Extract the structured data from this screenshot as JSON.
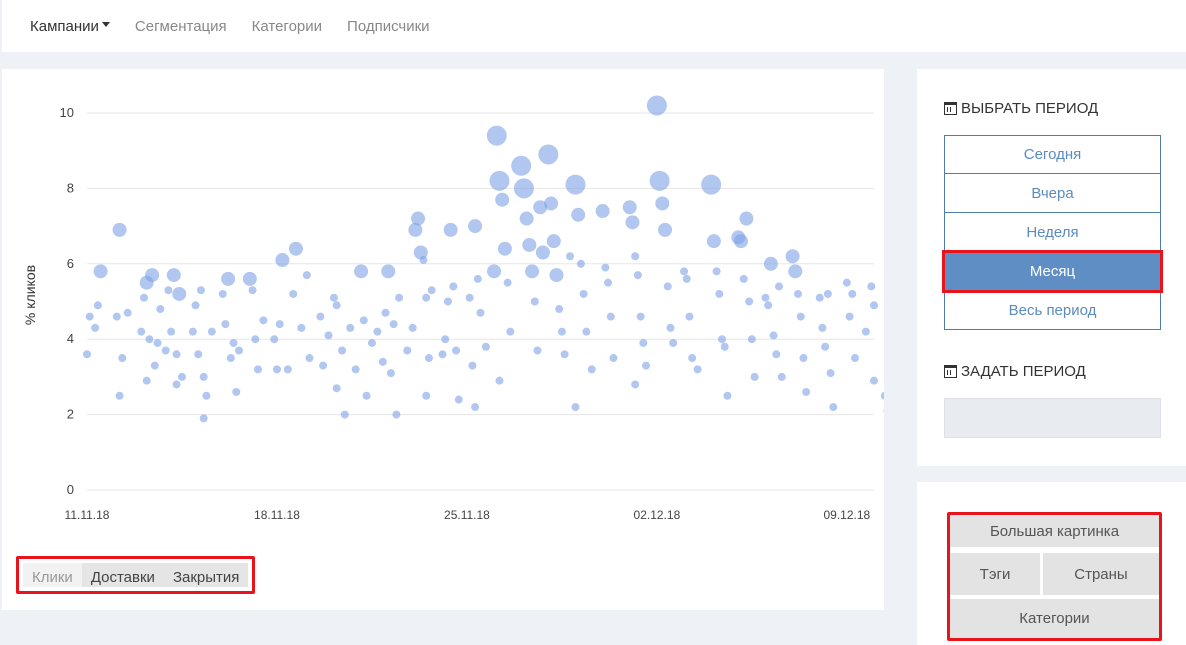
{
  "nav": {
    "items": [
      {
        "label": "Кампании",
        "active": true,
        "dropdown": true
      },
      {
        "label": "Сегментация"
      },
      {
        "label": "Категории"
      },
      {
        "label": "Подписчики"
      }
    ]
  },
  "colors": {
    "bubble": "#7da2e6",
    "accent_red": "#e8131b",
    "active_period": "#5f8ec4",
    "period_text": "#5b8bc0"
  },
  "chart_data": {
    "type": "scatter",
    "ylabel": "% кликов",
    "xlabel": "",
    "ylim": [
      0,
      10
    ],
    "y_ticks": [
      "0",
      "2",
      "4",
      "6",
      "8",
      "10"
    ],
    "x_range": [
      "2018-11-11",
      "2018-12-10"
    ],
    "x_ticks": [
      "11.11.18",
      "18.11.18",
      "25.11.18",
      "02.12.18",
      "09.12.18"
    ],
    "grid": true,
    "marker_size_varies": true,
    "series": [
      {
        "points": [
          {
            "d": 0.0,
            "y": 3.6,
            "s": 1
          },
          {
            "d": 0.1,
            "y": 4.6,
            "s": 1
          },
          {
            "d": 0.3,
            "y": 4.3,
            "s": 1
          },
          {
            "d": 0.4,
            "y": 4.9,
            "s": 1
          },
          {
            "d": 0.5,
            "y": 5.8,
            "s": 2
          },
          {
            "d": 1.1,
            "y": 4.6,
            "s": 1
          },
          {
            "d": 1.2,
            "y": 6.9,
            "s": 2
          },
          {
            "d": 1.3,
            "y": 3.5,
            "s": 1
          },
          {
            "d": 1.5,
            "y": 4.7,
            "s": 1
          },
          {
            "d": 1.2,
            "y": 2.5,
            "s": 1
          },
          {
            "d": 2.0,
            "y": 4.2,
            "s": 1
          },
          {
            "d": 2.1,
            "y": 5.1,
            "s": 1
          },
          {
            "d": 2.2,
            "y": 5.5,
            "s": 2
          },
          {
            "d": 2.3,
            "y": 4.0,
            "s": 1
          },
          {
            "d": 2.4,
            "y": 5.7,
            "s": 2
          },
          {
            "d": 2.5,
            "y": 3.3,
            "s": 1
          },
          {
            "d": 2.6,
            "y": 3.9,
            "s": 1
          },
          {
            "d": 2.2,
            "y": 2.9,
            "s": 1
          },
          {
            "d": 2.7,
            "y": 4.8,
            "s": 1
          },
          {
            "d": 2.9,
            "y": 3.7,
            "s": 1
          },
          {
            "d": 3.0,
            "y": 5.3,
            "s": 1
          },
          {
            "d": 3.1,
            "y": 4.2,
            "s": 1
          },
          {
            "d": 3.2,
            "y": 5.7,
            "s": 2
          },
          {
            "d": 3.3,
            "y": 3.6,
            "s": 1
          },
          {
            "d": 3.4,
            "y": 5.2,
            "s": 2
          },
          {
            "d": 3.5,
            "y": 3.0,
            "s": 1
          },
          {
            "d": 3.3,
            "y": 2.8,
            "s": 1
          },
          {
            "d": 3.9,
            "y": 4.2,
            "s": 1
          },
          {
            "d": 4.0,
            "y": 4.9,
            "s": 1
          },
          {
            "d": 4.1,
            "y": 3.6,
            "s": 1
          },
          {
            "d": 4.2,
            "y": 5.3,
            "s": 1
          },
          {
            "d": 4.3,
            "y": 3.0,
            "s": 1
          },
          {
            "d": 4.4,
            "y": 2.5,
            "s": 1
          },
          {
            "d": 4.3,
            "y": 1.9,
            "s": 1
          },
          {
            "d": 4.6,
            "y": 4.2,
            "s": 1
          },
          {
            "d": 5.0,
            "y": 5.2,
            "s": 1
          },
          {
            "d": 5.1,
            "y": 4.4,
            "s": 1
          },
          {
            "d": 5.2,
            "y": 5.6,
            "s": 2
          },
          {
            "d": 5.3,
            "y": 3.5,
            "s": 1
          },
          {
            "d": 5.4,
            "y": 3.9,
            "s": 1
          },
          {
            "d": 5.5,
            "y": 2.6,
            "s": 1
          },
          {
            "d": 5.6,
            "y": 3.7,
            "s": 1
          },
          {
            "d": 6.0,
            "y": 5.6,
            "s": 2
          },
          {
            "d": 6.1,
            "y": 5.3,
            "s": 1
          },
          {
            "d": 6.2,
            "y": 4.0,
            "s": 1
          },
          {
            "d": 6.3,
            "y": 3.2,
            "s": 1
          },
          {
            "d": 6.5,
            "y": 4.5,
            "s": 1
          },
          {
            "d": 6.9,
            "y": 4.0,
            "s": 1
          },
          {
            "d": 7.0,
            "y": 3.2,
            "s": 1
          },
          {
            "d": 7.1,
            "y": 4.4,
            "s": 1
          },
          {
            "d": 7.2,
            "y": 6.1,
            "s": 2
          },
          {
            "d": 7.4,
            "y": 3.2,
            "s": 1
          },
          {
            "d": 7.6,
            "y": 5.2,
            "s": 1
          },
          {
            "d": 7.7,
            "y": 6.4,
            "s": 2
          },
          {
            "d": 7.9,
            "y": 4.3,
            "s": 1
          },
          {
            "d": 8.1,
            "y": 5.7,
            "s": 1
          },
          {
            "d": 8.2,
            "y": 3.5,
            "s": 1
          },
          {
            "d": 8.6,
            "y": 4.6,
            "s": 1
          },
          {
            "d": 8.7,
            "y": 3.3,
            "s": 1
          },
          {
            "d": 8.9,
            "y": 4.1,
            "s": 1
          },
          {
            "d": 9.1,
            "y": 5.1,
            "s": 1
          },
          {
            "d": 9.2,
            "y": 4.9,
            "s": 1
          },
          {
            "d": 9.2,
            "y": 2.7,
            "s": 1
          },
          {
            "d": 9.4,
            "y": 3.7,
            "s": 1
          },
          {
            "d": 9.5,
            "y": 2.0,
            "s": 1
          },
          {
            "d": 9.7,
            "y": 4.3,
            "s": 1
          },
          {
            "d": 9.9,
            "y": 3.2,
            "s": 1
          },
          {
            "d": 10.1,
            "y": 5.8,
            "s": 2
          },
          {
            "d": 10.2,
            "y": 4.5,
            "s": 1
          },
          {
            "d": 10.3,
            "y": 2.5,
            "s": 1
          },
          {
            "d": 10.5,
            "y": 3.9,
            "s": 1
          },
          {
            "d": 10.7,
            "y": 4.2,
            "s": 1
          },
          {
            "d": 10.9,
            "y": 3.4,
            "s": 1
          },
          {
            "d": 11.0,
            "y": 4.7,
            "s": 1
          },
          {
            "d": 11.1,
            "y": 5.8,
            "s": 2
          },
          {
            "d": 11.2,
            "y": 3.1,
            "s": 1
          },
          {
            "d": 11.3,
            "y": 4.4,
            "s": 1
          },
          {
            "d": 11.4,
            "y": 2.0,
            "s": 1
          },
          {
            "d": 11.5,
            "y": 5.1,
            "s": 1
          },
          {
            "d": 11.8,
            "y": 3.7,
            "s": 1
          },
          {
            "d": 12.0,
            "y": 4.3,
            "s": 1
          },
          {
            "d": 12.1,
            "y": 6.9,
            "s": 2
          },
          {
            "d": 12.2,
            "y": 7.2,
            "s": 2
          },
          {
            "d": 12.3,
            "y": 6.3,
            "s": 2
          },
          {
            "d": 12.4,
            "y": 6.1,
            "s": 1
          },
          {
            "d": 12.5,
            "y": 5.1,
            "s": 1
          },
          {
            "d": 12.6,
            "y": 3.5,
            "s": 1
          },
          {
            "d": 12.7,
            "y": 5.3,
            "s": 1
          },
          {
            "d": 12.5,
            "y": 2.5,
            "s": 1
          },
          {
            "d": 13.1,
            "y": 3.6,
            "s": 1
          },
          {
            "d": 13.2,
            "y": 4.0,
            "s": 1
          },
          {
            "d": 13.3,
            "y": 5.0,
            "s": 1
          },
          {
            "d": 13.4,
            "y": 6.9,
            "s": 2
          },
          {
            "d": 13.5,
            "y": 5.4,
            "s": 1
          },
          {
            "d": 13.6,
            "y": 3.7,
            "s": 1
          },
          {
            "d": 13.7,
            "y": 2.4,
            "s": 1
          },
          {
            "d": 14.1,
            "y": 5.1,
            "s": 1
          },
          {
            "d": 14.2,
            "y": 3.3,
            "s": 1
          },
          {
            "d": 14.3,
            "y": 7.0,
            "s": 2
          },
          {
            "d": 14.4,
            "y": 5.6,
            "s": 1
          },
          {
            "d": 14.5,
            "y": 4.7,
            "s": 1
          },
          {
            "d": 14.3,
            "y": 2.2,
            "s": 1
          },
          {
            "d": 14.7,
            "y": 3.8,
            "s": 1
          },
          {
            "d": 15.0,
            "y": 5.8,
            "s": 2
          },
          {
            "d": 15.1,
            "y": 9.4,
            "s": 3
          },
          {
            "d": 15.2,
            "y": 8.2,
            "s": 3
          },
          {
            "d": 15.3,
            "y": 7.7,
            "s": 2
          },
          {
            "d": 15.4,
            "y": 6.4,
            "s": 2
          },
          {
            "d": 15.5,
            "y": 5.5,
            "s": 1
          },
          {
            "d": 15.6,
            "y": 4.2,
            "s": 1
          },
          {
            "d": 15.2,
            "y": 2.9,
            "s": 1
          },
          {
            "d": 16.0,
            "y": 8.6,
            "s": 3
          },
          {
            "d": 16.1,
            "y": 8.0,
            "s": 3
          },
          {
            "d": 16.2,
            "y": 7.2,
            "s": 2
          },
          {
            "d": 16.3,
            "y": 6.5,
            "s": 2
          },
          {
            "d": 16.4,
            "y": 5.8,
            "s": 2
          },
          {
            "d": 16.5,
            "y": 5.0,
            "s": 1
          },
          {
            "d": 16.6,
            "y": 3.7,
            "s": 1
          },
          {
            "d": 16.7,
            "y": 7.5,
            "s": 2
          },
          {
            "d": 16.8,
            "y": 6.3,
            "s": 2
          },
          {
            "d": 17.0,
            "y": 8.9,
            "s": 3
          },
          {
            "d": 17.1,
            "y": 7.6,
            "s": 2
          },
          {
            "d": 17.2,
            "y": 6.6,
            "s": 2
          },
          {
            "d": 17.3,
            "y": 5.7,
            "s": 2
          },
          {
            "d": 17.4,
            "y": 4.8,
            "s": 1
          },
          {
            "d": 17.5,
            "y": 4.2,
            "s": 1
          },
          {
            "d": 17.6,
            "y": 3.6,
            "s": 1
          },
          {
            "d": 17.8,
            "y": 6.2,
            "s": 1
          },
          {
            "d": 18.0,
            "y": 8.1,
            "s": 3
          },
          {
            "d": 18.1,
            "y": 7.3,
            "s": 2
          },
          {
            "d": 18.2,
            "y": 6.0,
            "s": 1
          },
          {
            "d": 18.3,
            "y": 5.2,
            "s": 1
          },
          {
            "d": 18.4,
            "y": 4.2,
            "s": 1
          },
          {
            "d": 18.0,
            "y": 2.2,
            "s": 1
          },
          {
            "d": 18.6,
            "y": 3.2,
            "s": 1
          },
          {
            "d": 19.0,
            "y": 7.4,
            "s": 2
          },
          {
            "d": 19.1,
            "y": 5.9,
            "s": 1
          },
          {
            "d": 19.2,
            "y": 5.5,
            "s": 1
          },
          {
            "d": 19.3,
            "y": 4.6,
            "s": 1
          },
          {
            "d": 19.4,
            "y": 3.5,
            "s": 1
          },
          {
            "d": 20.0,
            "y": 7.5,
            "s": 2
          },
          {
            "d": 20.1,
            "y": 7.1,
            "s": 2
          },
          {
            "d": 20.2,
            "y": 6.2,
            "s": 1
          },
          {
            "d": 20.3,
            "y": 5.7,
            "s": 1
          },
          {
            "d": 20.4,
            "y": 4.6,
            "s": 1
          },
          {
            "d": 20.5,
            "y": 3.9,
            "s": 1
          },
          {
            "d": 20.6,
            "y": 3.3,
            "s": 1
          },
          {
            "d": 20.2,
            "y": 2.8,
            "s": 1
          },
          {
            "d": 21.0,
            "y": 10.2,
            "s": 3
          },
          {
            "d": 21.1,
            "y": 8.2,
            "s": 3
          },
          {
            "d": 21.2,
            "y": 7.6,
            "s": 2
          },
          {
            "d": 21.3,
            "y": 6.9,
            "s": 2
          },
          {
            "d": 21.4,
            "y": 5.4,
            "s": 1
          },
          {
            "d": 21.5,
            "y": 4.3,
            "s": 1
          },
          {
            "d": 21.6,
            "y": 3.9,
            "s": 1
          },
          {
            "d": 22.0,
            "y": 5.8,
            "s": 1
          },
          {
            "d": 22.1,
            "y": 5.6,
            "s": 1
          },
          {
            "d": 22.2,
            "y": 4.6,
            "s": 1
          },
          {
            "d": 22.3,
            "y": 3.5,
            "s": 1
          },
          {
            "d": 22.5,
            "y": 3.2,
            "s": 1
          },
          {
            "d": 23.0,
            "y": 8.1,
            "s": 3
          },
          {
            "d": 23.1,
            "y": 6.6,
            "s": 2
          },
          {
            "d": 23.2,
            "y": 5.8,
            "s": 1
          },
          {
            "d": 23.3,
            "y": 5.2,
            "s": 1
          },
          {
            "d": 23.4,
            "y": 4.0,
            "s": 1
          },
          {
            "d": 23.5,
            "y": 3.8,
            "s": 1
          },
          {
            "d": 23.6,
            "y": 2.5,
            "s": 1
          },
          {
            "d": 24.0,
            "y": 6.7,
            "s": 2
          },
          {
            "d": 24.1,
            "y": 6.6,
            "s": 2
          },
          {
            "d": 24.2,
            "y": 5.6,
            "s": 1
          },
          {
            "d": 24.3,
            "y": 7.2,
            "s": 2
          },
          {
            "d": 24.4,
            "y": 5.0,
            "s": 1
          },
          {
            "d": 24.5,
            "y": 4.0,
            "s": 1
          },
          {
            "d": 24.6,
            "y": 3.0,
            "s": 1
          },
          {
            "d": 25.0,
            "y": 5.1,
            "s": 1
          },
          {
            "d": 25.1,
            "y": 4.9,
            "s": 1
          },
          {
            "d": 25.2,
            "y": 6.0,
            "s": 2
          },
          {
            "d": 25.3,
            "y": 4.1,
            "s": 1
          },
          {
            "d": 25.4,
            "y": 3.6,
            "s": 1
          },
          {
            "d": 25.5,
            "y": 5.4,
            "s": 1
          },
          {
            "d": 25.6,
            "y": 3.0,
            "s": 1
          },
          {
            "d": 26.0,
            "y": 6.2,
            "s": 2
          },
          {
            "d": 26.1,
            "y": 5.8,
            "s": 2
          },
          {
            "d": 26.2,
            "y": 5.2,
            "s": 1
          },
          {
            "d": 26.3,
            "y": 4.6,
            "s": 1
          },
          {
            "d": 26.4,
            "y": 3.5,
            "s": 1
          },
          {
            "d": 26.5,
            "y": 2.6,
            "s": 1
          },
          {
            "d": 27.0,
            "y": 5.1,
            "s": 1
          },
          {
            "d": 27.1,
            "y": 4.3,
            "s": 1
          },
          {
            "d": 27.2,
            "y": 3.8,
            "s": 1
          },
          {
            "d": 27.3,
            "y": 5.2,
            "s": 1
          },
          {
            "d": 27.4,
            "y": 3.1,
            "s": 1
          },
          {
            "d": 27.5,
            "y": 2.2,
            "s": 1
          },
          {
            "d": 28.0,
            "y": 5.5,
            "s": 1
          },
          {
            "d": 28.1,
            "y": 4.6,
            "s": 1
          },
          {
            "d": 28.2,
            "y": 5.2,
            "s": 1
          },
          {
            "d": 28.3,
            "y": 3.5,
            "s": 1
          },
          {
            "d": 28.9,
            "y": 5.4,
            "s": 1
          },
          {
            "d": 29.0,
            "y": 2.9,
            "s": 1
          },
          {
            "d": 29.4,
            "y": 2.5,
            "s": 1
          },
          {
            "d": 29.5,
            "y": 2.1,
            "s": 1
          },
          {
            "d": 29.0,
            "y": 4.9,
            "s": 1
          },
          {
            "d": 28.7,
            "y": 4.2,
            "s": 1
          }
        ]
      }
    ]
  },
  "chart_mode_buttons": [
    {
      "label": "Клики",
      "disabled": true
    },
    {
      "label": "Доставки"
    },
    {
      "label": "Закрытия"
    }
  ],
  "period": {
    "title": "ВЫБРАТЬ ПЕРИОД",
    "options": [
      {
        "label": "Сегодня"
      },
      {
        "label": "Вчера"
      },
      {
        "label": "Неделя"
      },
      {
        "label": "Месяц",
        "active": true
      },
      {
        "label": "Весь период"
      }
    ],
    "custom_title": "ЗАДАТЬ ПЕРИОД",
    "custom_value": ""
  },
  "views": {
    "big_picture": "Большая картинка",
    "tags": "Тэги",
    "countries": "Страны",
    "categories": "Категории"
  }
}
